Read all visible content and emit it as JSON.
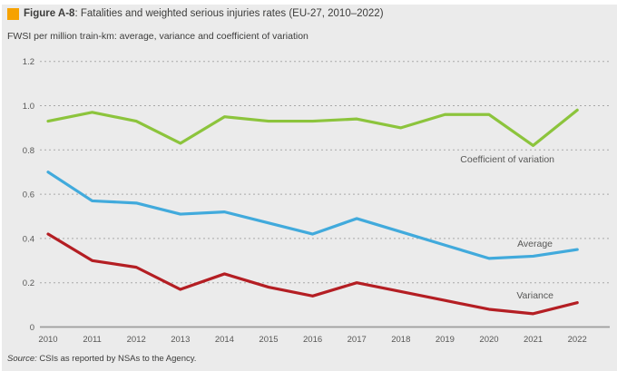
{
  "header": {
    "figure_label": "Figure A-8",
    "title_rest": ": Fatalities and weighted serious injuries rates (EU-27, 2010–2022)",
    "subtitle": "FWSI per million train-km: average, variance and coefficient of variation",
    "accent_color": "#f6a200"
  },
  "source": {
    "prefix": "Source:",
    "text": " CSIs as reported by NSAs to the Agency."
  },
  "chart_data": {
    "type": "line",
    "title": "Fatalities and weighted serious injuries rates (EU-27, 2010–2022)",
    "subtitle": "FWSI per million train-km: average, variance and coefficient of variation",
    "categories": [
      "2010",
      "2011",
      "2012",
      "2013",
      "2014",
      "2015",
      "2016",
      "2017",
      "2018",
      "2019",
      "2020",
      "2021",
      "2022"
    ],
    "series": [
      {
        "name": "Coefficient of variation",
        "color": "#8cc43c",
        "values": [
          0.93,
          0.97,
          0.93,
          0.83,
          0.95,
          0.93,
          0.93,
          0.94,
          0.9,
          0.96,
          0.96,
          0.82,
          0.98
        ]
      },
      {
        "name": "Average",
        "color": "#41aadc",
        "values": [
          0.7,
          0.57,
          0.56,
          0.51,
          0.52,
          0.47,
          0.42,
          0.49,
          0.43,
          0.37,
          0.31,
          0.32,
          0.35
        ]
      },
      {
        "name": "Variance",
        "color": "#b41e23",
        "values": [
          0.42,
          0.3,
          0.27,
          0.17,
          0.24,
          0.18,
          0.14,
          0.2,
          0.16,
          0.12,
          0.08,
          0.06,
          0.11
        ]
      }
    ],
    "y_ticks": [
      "0",
      "0.2",
      "0.4",
      "0.6",
      "0.8",
      "1.0",
      "1.2"
    ],
    "ylim": [
      0,
      1.2
    ],
    "xlabel": "",
    "ylabel": "FWSI per million train-km",
    "grid": "horizontal-dashed",
    "legend": "inline-labels-right",
    "grid_color": "#a9a9a9",
    "axis_color": "#9d9d9c",
    "background_color": "#ebebeb"
  }
}
